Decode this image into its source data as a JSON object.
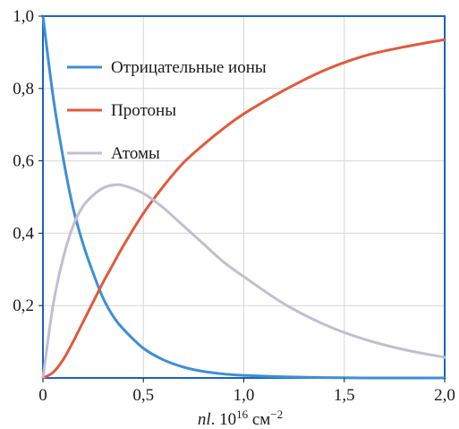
{
  "chart_data": {
    "type": "line",
    "xlabel": {
      "base": "nl",
      "sep": ". ",
      "mantissa": "10",
      "exponent": "16",
      "unit": " см",
      "unit_exp": "−2"
    },
    "ylabel": "",
    "xlim": [
      0,
      2.0
    ],
    "ylim": [
      0,
      1.0
    ],
    "x_ticks": [
      {
        "value": 0,
        "label": "0"
      },
      {
        "value": 0.5,
        "label": "0,5"
      },
      {
        "value": 1.0,
        "label": "1,0"
      },
      {
        "value": 1.5,
        "label": "1,5"
      },
      {
        "value": 2.0,
        "label": "2,0"
      }
    ],
    "y_ticks": [
      {
        "value": 0.2,
        "label": "0,2"
      },
      {
        "value": 0.4,
        "label": "0,4"
      },
      {
        "value": 0.6,
        "label": "0,6"
      },
      {
        "value": 0.8,
        "label": "0,8"
      },
      {
        "value": 1.0,
        "label": "1,0"
      }
    ],
    "grid": true,
    "legend_position": "top-left",
    "series": [
      {
        "name": "Отрицательные ионы",
        "color": "#3d8fd6",
        "x": [
          0,
          0.05,
          0.1,
          0.15,
          0.2,
          0.25,
          0.3,
          0.35,
          0.4,
          0.5,
          0.6,
          0.7,
          0.8,
          0.9,
          1.0,
          1.2,
          1.4,
          1.6,
          1.8,
          2.0
        ],
        "y": [
          1.0,
          0.78,
          0.61,
          0.47,
          0.37,
          0.29,
          0.22,
          0.17,
          0.135,
          0.082,
          0.05,
          0.03,
          0.018,
          0.011,
          0.007,
          0.003,
          0.001,
          0.0,
          0.0,
          0.0
        ]
      },
      {
        "name": "Протоны",
        "color": "#e05a3a",
        "x": [
          0,
          0.05,
          0.1,
          0.15,
          0.2,
          0.25,
          0.3,
          0.35,
          0.4,
          0.5,
          0.6,
          0.7,
          0.8,
          0.9,
          1.0,
          1.2,
          1.4,
          1.6,
          1.8,
          2.0
        ],
        "y": [
          0.0,
          0.015,
          0.05,
          0.1,
          0.155,
          0.21,
          0.265,
          0.315,
          0.365,
          0.455,
          0.53,
          0.595,
          0.645,
          0.69,
          0.73,
          0.795,
          0.85,
          0.89,
          0.915,
          0.935
        ]
      },
      {
        "name": "Атомы",
        "color": "#c4bcd4",
        "x": [
          0,
          0.05,
          0.1,
          0.15,
          0.2,
          0.25,
          0.3,
          0.35,
          0.4,
          0.5,
          0.6,
          0.7,
          0.8,
          0.9,
          1.0,
          1.2,
          1.4,
          1.6,
          1.8,
          2.0
        ],
        "y": [
          0.0,
          0.2,
          0.33,
          0.42,
          0.475,
          0.505,
          0.525,
          0.533,
          0.532,
          0.51,
          0.47,
          0.42,
          0.37,
          0.32,
          0.28,
          0.205,
          0.148,
          0.107,
          0.078,
          0.057
        ]
      }
    ]
  }
}
